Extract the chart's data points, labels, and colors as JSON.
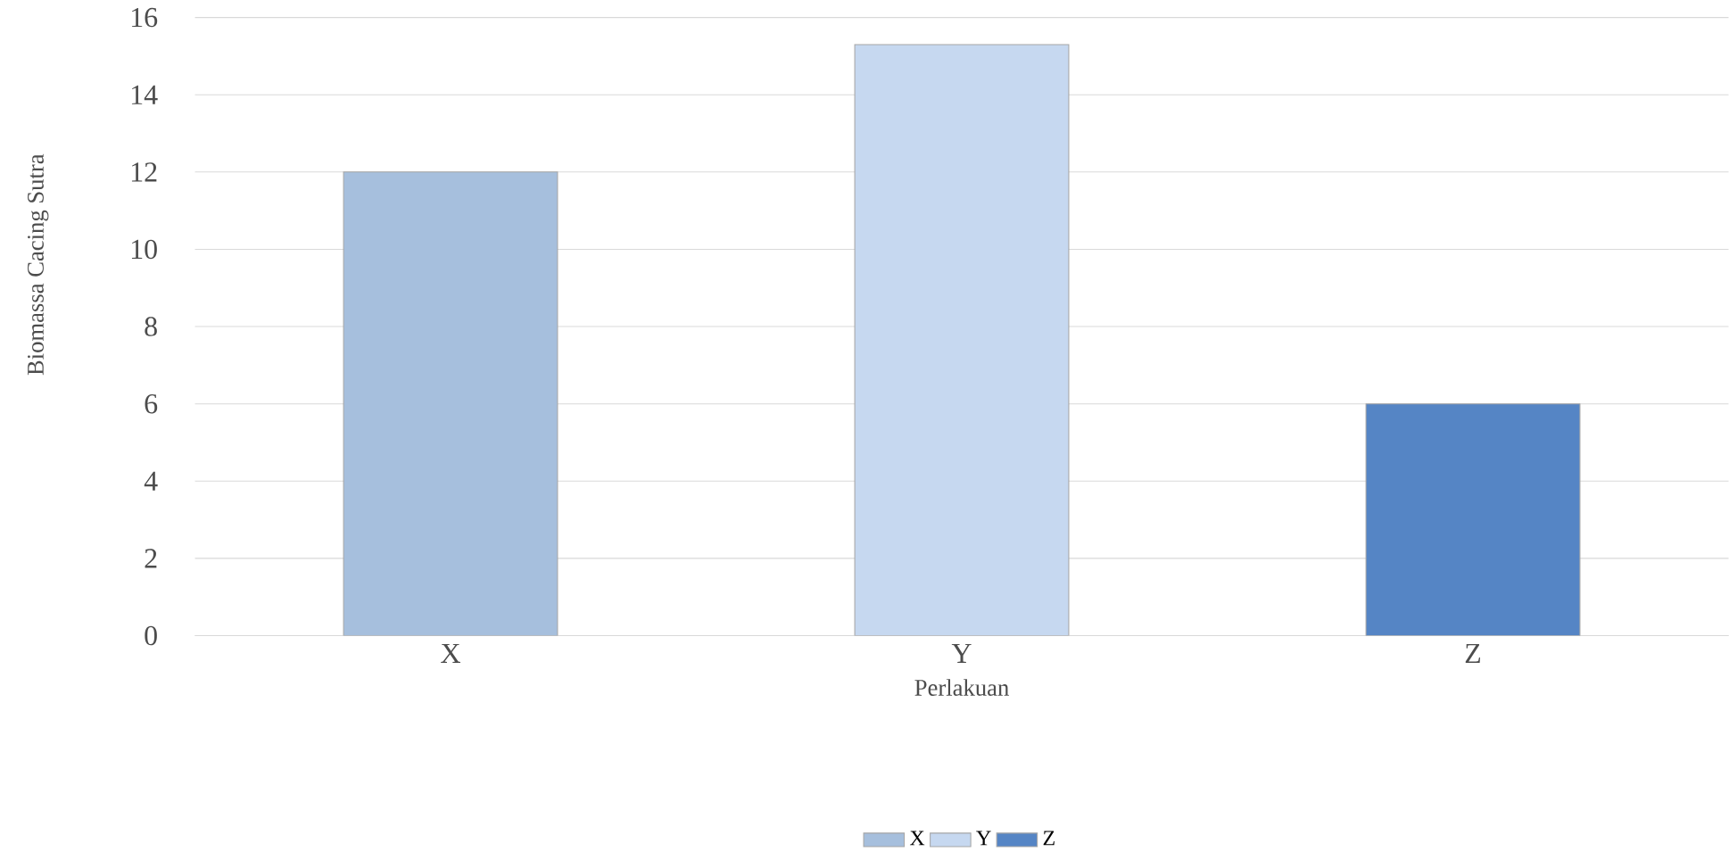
{
  "chart_data": {
    "type": "bar",
    "xlabel": "Perlakuan",
    "ylabel": "Biomassa Cacing Sutra",
    "categories": [
      "X",
      "Y",
      "Z"
    ],
    "series": [
      {
        "name": "X",
        "color": "#a6bfdd",
        "values": [
          12,
          null,
          null
        ]
      },
      {
        "name": "Y",
        "color": "#c6d8f0",
        "values": [
          null,
          15.3,
          null
        ]
      },
      {
        "name": "Z",
        "color": "#5585c5",
        "values": [
          null,
          null,
          6.0
        ]
      }
    ],
    "ylim": [
      0,
      16
    ],
    "yticks": [
      0,
      2,
      4,
      6,
      8,
      10,
      12,
      14,
      16
    ],
    "grid": "y",
    "legend": "bottom"
  }
}
